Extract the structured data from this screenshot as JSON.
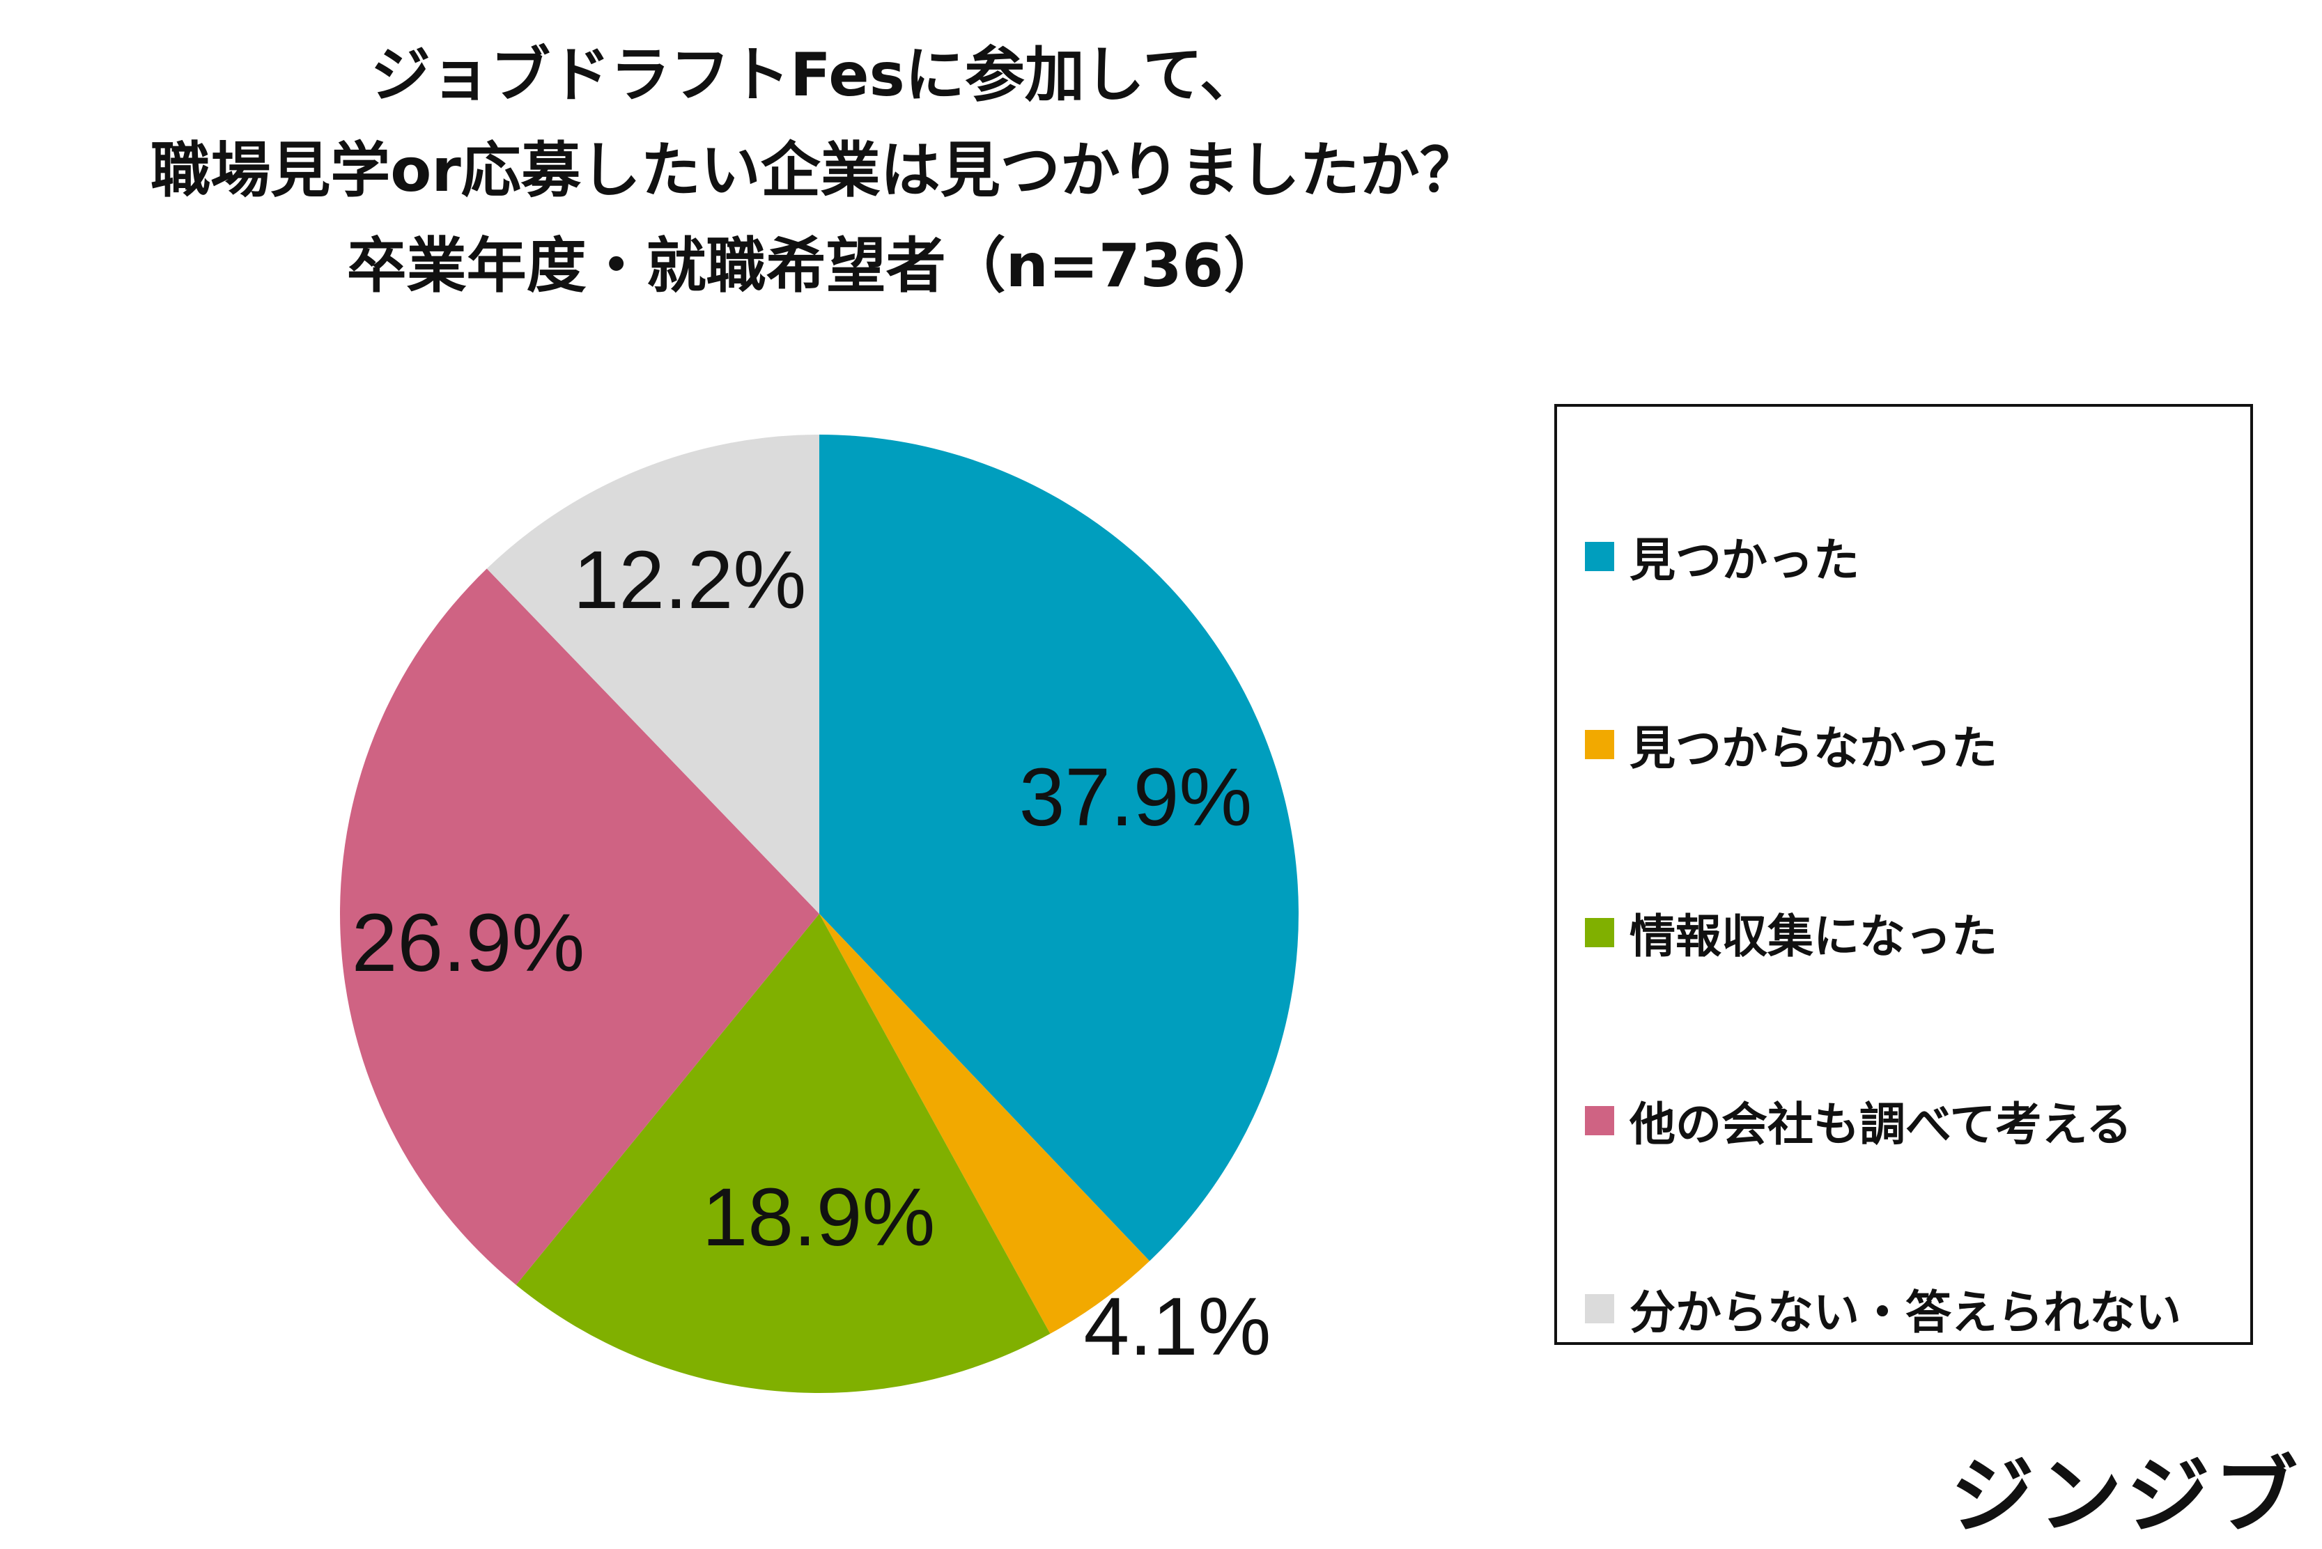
{
  "title_lines": [
    "ジョブドラフトFesに参加して、",
    "職場見学or応募したい企業は見つかりましたか？",
    "卒業年度・就職希望者（n=736）"
  ],
  "brand": "ジンジブ",
  "chart_data": {
    "type": "pie",
    "title": "ジョブドラフトFesに参加して、職場見学or応募したい企業は見つかりましたか？ 卒業年度・就職希望者（n=736）",
    "start": "12 o'clock",
    "direction": "clockwise",
    "legend_position": "right",
    "slices": [
      {
        "label": "見つかった",
        "value": 37.9,
        "display": "37.9%",
        "color": "#009EBE"
      },
      {
        "label": "見つからなかった",
        "value": 4.1,
        "display": "4.1%",
        "color": "#F2A900"
      },
      {
        "label": "情報収集になった",
        "value": 18.9,
        "display": "18.9%",
        "color": "#80B000"
      },
      {
        "label": "他の会社も調べて考える",
        "value": 26.9,
        "display": "26.9%",
        "color": "#CF6383"
      },
      {
        "label": "分からない・答えられない",
        "value": 12.2,
        "display": "12.2%",
        "color": "#DBDBDB"
      }
    ]
  }
}
